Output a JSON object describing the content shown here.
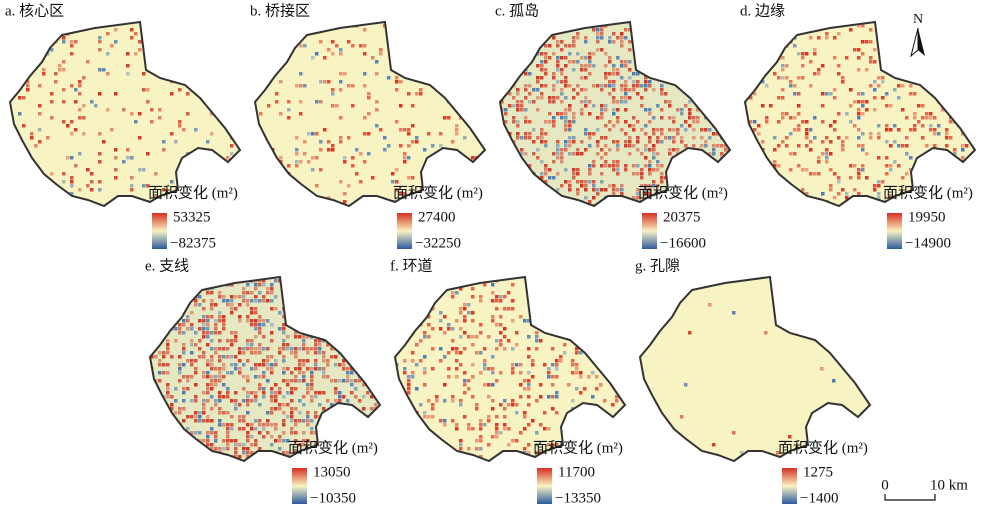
{
  "panels": [
    {
      "label": "a. 核心区",
      "legend_title": "面积变化 (m²)",
      "max": "53325",
      "min": "−82375"
    },
    {
      "label": "b. 桥接区",
      "legend_title": "面积变化 (m²)",
      "max": "27400",
      "min": "−32250"
    },
    {
      "label": "c. 孤岛",
      "legend_title": "面积变化 (m²)",
      "max": "20375",
      "min": "−16600"
    },
    {
      "label": "d. 边缘",
      "legend_title": "面积变化 (m²)",
      "max": "19950",
      "min": "−14900"
    },
    {
      "label": "e. 支线",
      "legend_title": "面积变化 (m²)",
      "max": "13050",
      "min": "−10350"
    },
    {
      "label": "f. 环道",
      "legend_title": "面积变化 (m²)",
      "max": "11700",
      "min": "−13350"
    },
    {
      "label": "g. 孔隙",
      "legend_title": "面积变化 (m²)",
      "max": "1275",
      "min": "−1400"
    }
  ],
  "north": "N",
  "scale_bar": {
    "start": "0",
    "end": "10 km"
  }
}
